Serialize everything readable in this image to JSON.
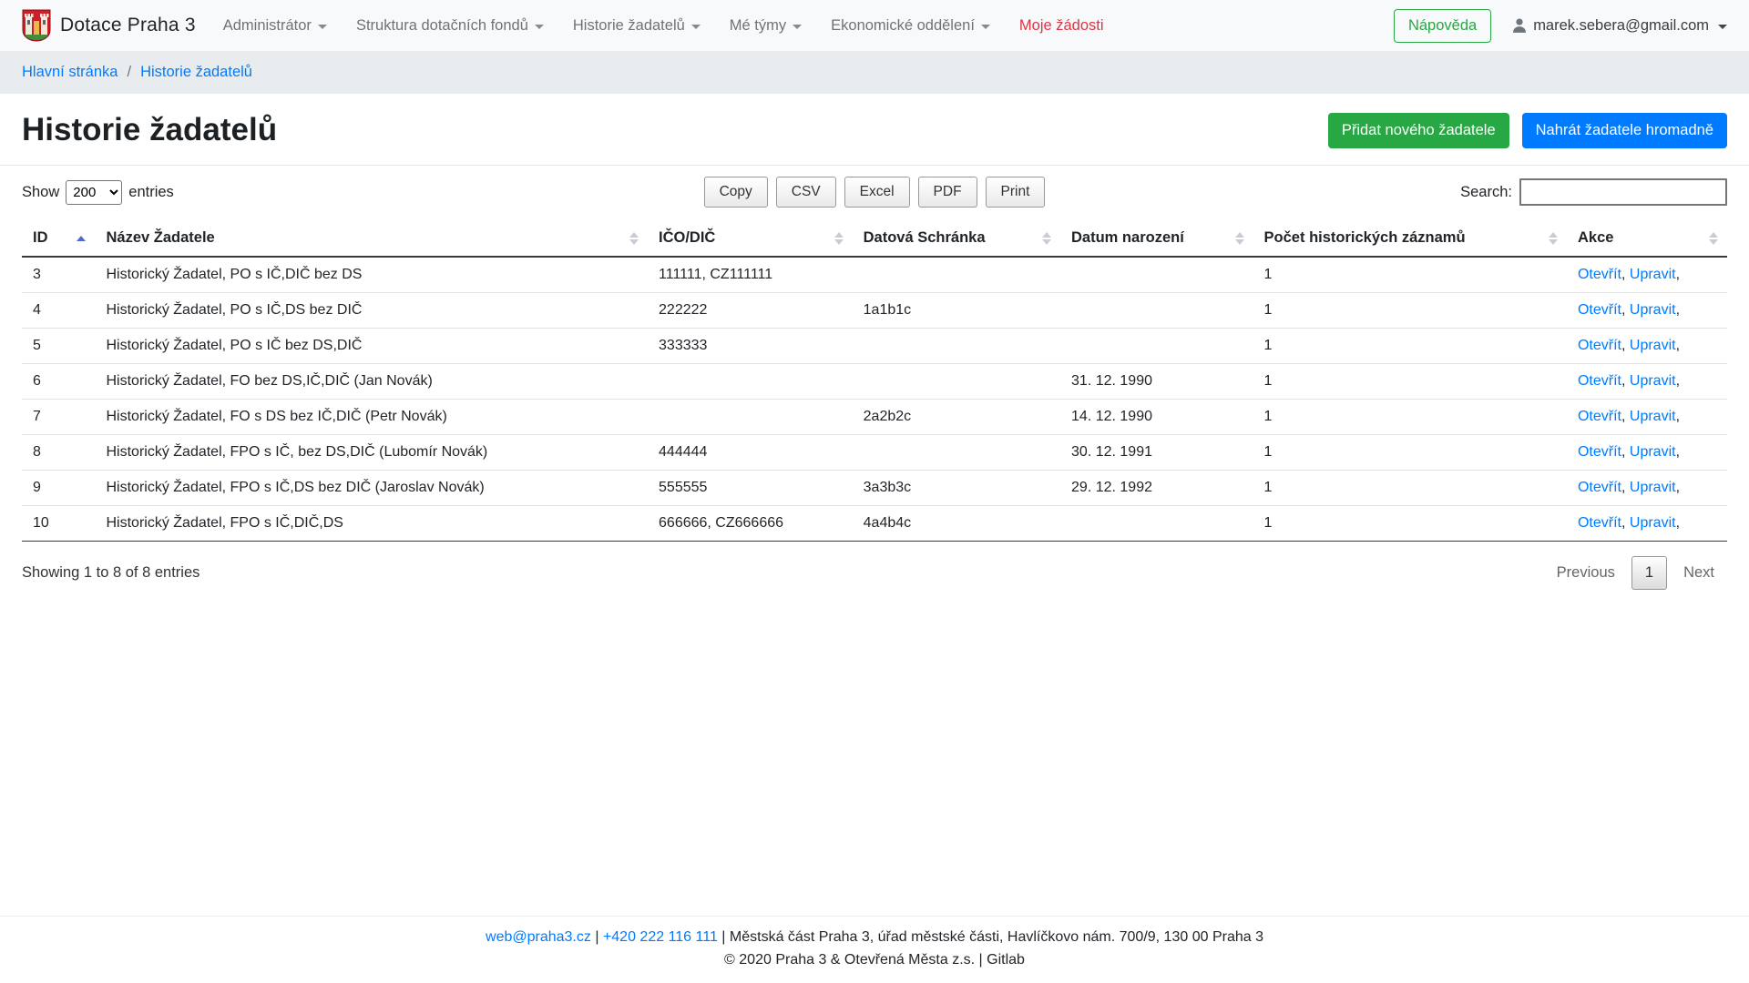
{
  "navbar": {
    "brand": "Dotace Praha 3",
    "items": [
      {
        "label": "Administrátor",
        "caret": true,
        "highlight": false
      },
      {
        "label": "Struktura dotačních fondů",
        "caret": true,
        "highlight": false
      },
      {
        "label": "Historie žadatelů",
        "caret": true,
        "highlight": false
      },
      {
        "label": "Mé týmy",
        "caret": true,
        "highlight": false
      },
      {
        "label": "Ekonomické oddělení",
        "caret": true,
        "highlight": false
      },
      {
        "label": "Moje žádosti",
        "caret": false,
        "highlight": true
      }
    ],
    "help_button": "Nápověda",
    "user_email": "marek.sebera@gmail.com"
  },
  "breadcrumb": {
    "items": [
      "Hlavní stránka",
      "Historie žadatelů"
    ],
    "separator": "/"
  },
  "page": {
    "title": "Historie žadatelů",
    "add_button": "Přidat nového žadatele",
    "upload_button": "Nahrát žadatele hromadně"
  },
  "controls": {
    "show_label": "Show",
    "entries_label": "entries",
    "page_length": "200",
    "export_buttons": [
      "Copy",
      "CSV",
      "Excel",
      "PDF",
      "Print"
    ],
    "search_label": "Search:",
    "search_value": ""
  },
  "table": {
    "columns": [
      {
        "label": "ID",
        "sort": "asc",
        "class": "col-id"
      },
      {
        "label": "Název Žadatele",
        "sort": "both",
        "class": "col-name"
      },
      {
        "label": "IČO/DIČ",
        "sort": "both",
        "class": "col-ico"
      },
      {
        "label": "Datová Schránka",
        "sort": "both",
        "class": "col-ds"
      },
      {
        "label": "Datum narození",
        "sort": "both",
        "class": "col-dob"
      },
      {
        "label": "Počet historických záznamů",
        "sort": "both",
        "class": "col-count"
      },
      {
        "label": "Akce",
        "sort": "both",
        "class": "col-akce"
      }
    ],
    "rows": [
      {
        "id": "3",
        "name": "Historický Žadatel, PO s IČ,DIČ bez DS",
        "ico": "111111, CZ111111",
        "ds": "",
        "dob": "",
        "count": "1"
      },
      {
        "id": "4",
        "name": "Historický Žadatel, PO s IČ,DS bez DIČ",
        "ico": "222222",
        "ds": "1a1b1c",
        "dob": "",
        "count": "1"
      },
      {
        "id": "5",
        "name": "Historický Žadatel, PO s IČ bez DS,DIČ",
        "ico": "333333",
        "ds": "",
        "dob": "",
        "count": "1"
      },
      {
        "id": "6",
        "name": "Historický Žadatel, FO bez DS,IČ,DIČ (Jan Novák)",
        "ico": "",
        "ds": "",
        "dob": "31. 12. 1990",
        "count": "1"
      },
      {
        "id": "7",
        "name": "Historický Žadatel, FO s DS bez IČ,DIČ (Petr Novák)",
        "ico": "",
        "ds": "2a2b2c",
        "dob": "14. 12. 1990",
        "count": "1"
      },
      {
        "id": "8",
        "name": "Historický Žadatel, FPO s IČ, bez DS,DIČ (Lubomír Novák)",
        "ico": "444444",
        "ds": "",
        "dob": "30. 12. 1991",
        "count": "1"
      },
      {
        "id": "9",
        "name": "Historický Žadatel, FPO s IČ,DS bez DIČ (Jaroslav Novák)",
        "ico": "555555",
        "ds": "3a3b3c",
        "dob": "29. 12. 1992",
        "count": "1"
      },
      {
        "id": "10",
        "name": "Historický Žadatel, FPO s IČ,DIČ,DS",
        "ico": "666666, CZ666666",
        "ds": "4a4b4c",
        "dob": "",
        "count": "1"
      }
    ],
    "action_links": [
      "Otevřít",
      "Upravit"
    ],
    "info": "Showing 1 to 8 of 8 entries",
    "pagination": {
      "previous": "Previous",
      "current": "1",
      "next": "Next"
    }
  },
  "footer": {
    "email": "web@praha3.cz",
    "phone": "+420 222 116 111",
    "separator": "|",
    "address": "Městská část Praha 3, úřad městské části, Havlíčkovo nám. 700/9, 130 00 Praha 3",
    "copyright": "© 2020 Praha 3 & Otevřená Města z.s. | Gitlab"
  },
  "colors": {
    "accent_green": "#28a745",
    "accent_blue": "#007bff",
    "accent_red": "#dc3545",
    "sort_active": "#5468c8",
    "navbar_bg": "#f8f9fa",
    "breadcrumb_bg": "#e9ecef"
  }
}
